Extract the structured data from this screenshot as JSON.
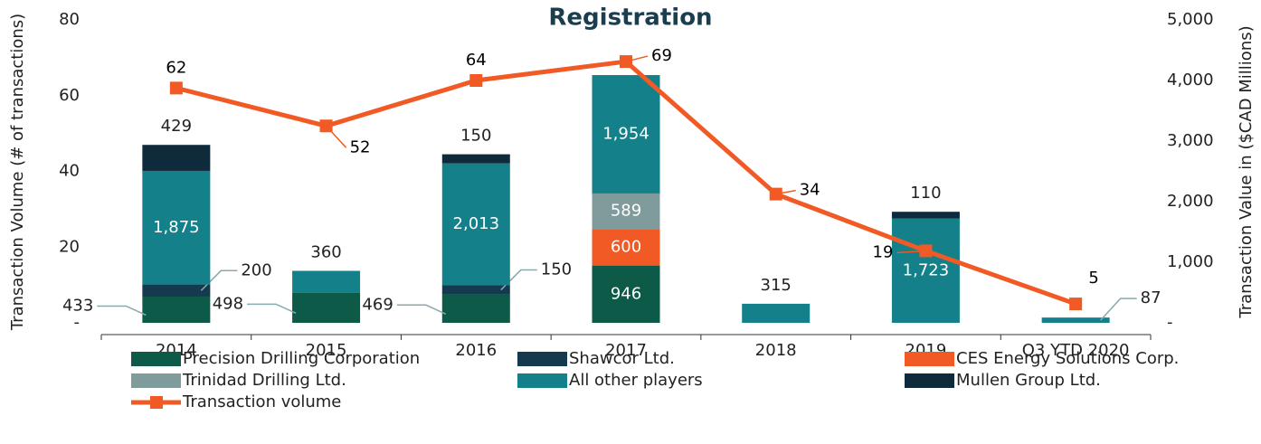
{
  "chart_data": {
    "type": "bar",
    "title": "Registration",
    "ylabel": "Transaction Volume (# of transactions)",
    "y2label": "Transaction Value in ($CAD  Millions)",
    "categories": [
      "2014",
      "2015",
      "2016",
      "2017",
      "2018",
      "2019",
      "Q3 YTD 2020"
    ],
    "ylim": [
      0,
      80
    ],
    "yticks": [
      {
        "value": 0,
        "label": "-"
      },
      20,
      40,
      60,
      80
    ],
    "y2lim": [
      0,
      5000
    ],
    "y2ticks": [
      {
        "value": 0,
        "label": "-"
      },
      {
        "value": 1000,
        "label": "1,000"
      },
      {
        "value": 2000,
        "label": "2,000"
      },
      {
        "value": 3000,
        "label": "3,000"
      },
      {
        "value": 4000,
        "label": "4,000"
      },
      {
        "value": 5000,
        "label": "5,000"
      }
    ],
    "stacked": true,
    "series": [
      {
        "name": "Precision Drilling Corporation",
        "color": "#0d5a48",
        "axis": "y2",
        "values": [
          433,
          498,
          469,
          946,
          null,
          null,
          null
        ]
      },
      {
        "name": "Shawcor Ltd.",
        "color": "#153a4f",
        "axis": "y2",
        "values": [
          200,
          null,
          150,
          null,
          null,
          null,
          null
        ]
      },
      {
        "name": "CES Energy Solutions Corp.",
        "color": "#f15a24",
        "axis": "y2",
        "values": [
          null,
          null,
          null,
          600,
          null,
          null,
          null
        ]
      },
      {
        "name": "Trinidad Drilling Ltd.",
        "color": "#7f9b9b",
        "axis": "y2",
        "values": [
          null,
          null,
          null,
          589,
          null,
          null,
          null
        ]
      },
      {
        "name": "All other players",
        "color": "#13808a",
        "axis": "y2",
        "values": [
          1875,
          360,
          2013,
          1954,
          315,
          1723,
          87
        ],
        "value_labels": [
          "1,875",
          "360",
          "2,013",
          "1,954",
          "315",
          "1,723",
          "87"
        ]
      },
      {
        "name": "Mullen Group Ltd.",
        "color": "#0f2a3a",
        "axis": "y2",
        "values": [
          429,
          null,
          150,
          null,
          null,
          110,
          null
        ]
      },
      {
        "name": "Transaction volume",
        "type": "line",
        "color": "#f15a24",
        "axis": "y",
        "values": [
          62,
          52,
          64,
          69,
          34,
          19,
          5
        ]
      }
    ]
  }
}
